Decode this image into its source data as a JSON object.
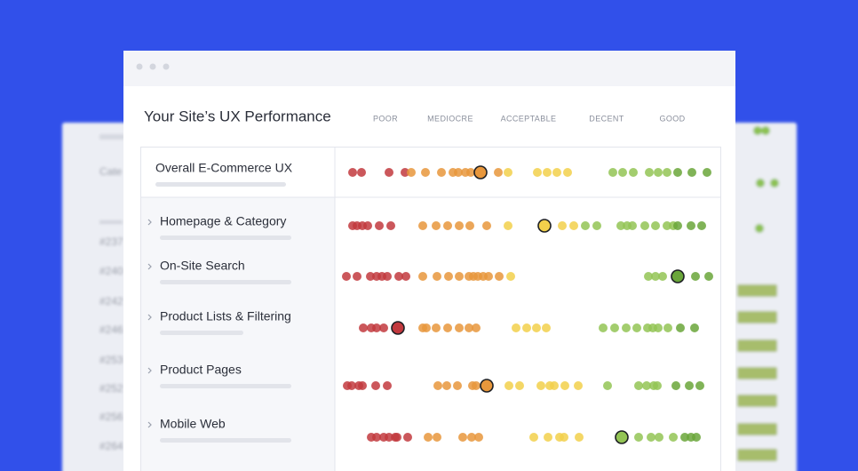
{
  "header": {
    "title": "Your Site’s UX Performance"
  },
  "scale": [
    "POOR",
    "MEDIOCRE",
    "ACCEPTABLE",
    "DECENT",
    "GOOD"
  ],
  "rows": [
    "Overall E-Commerce UX",
    "Homepage & Category",
    "On-Site Search",
    "Product Lists & Filtering",
    "Product Pages",
    "Mobile Web"
  ],
  "background": {
    "left_labels": [
      "Cate",
      "#237",
      "#240",
      "#242",
      "#246",
      "#253",
      "#252",
      "#256",
      "#264"
    ]
  }
}
